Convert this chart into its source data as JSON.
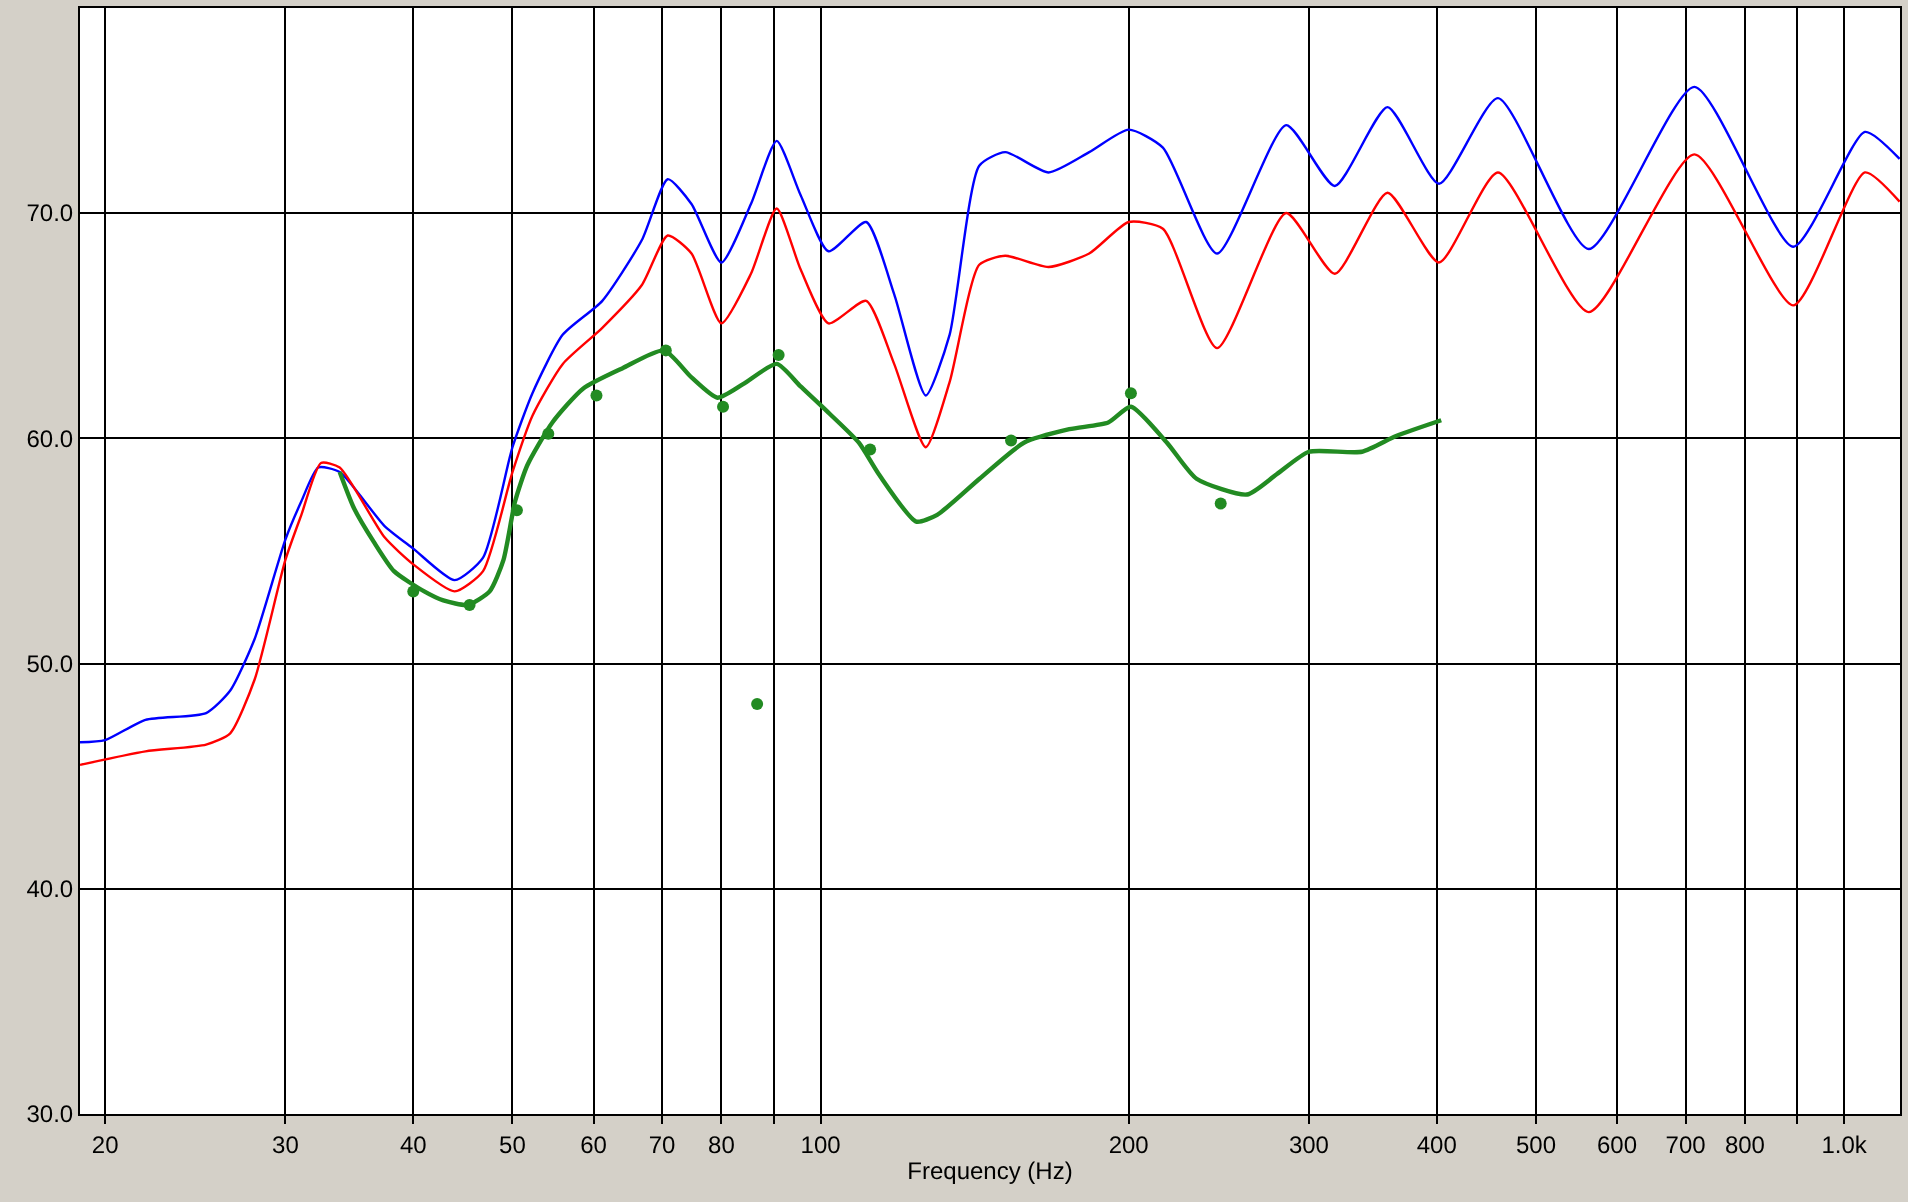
{
  "chart_data": {
    "type": "line",
    "xlabel": "Frequency (Hz)",
    "log": "x",
    "grid": true,
    "line_style": "solid",
    "xlim": [
      18.9,
      1134
    ],
    "ylim": [
      30,
      79.1
    ],
    "xticks": [
      20,
      30,
      40,
      50,
      60,
      70,
      80,
      {
        "value": 90,
        "label": null
      },
      100,
      200,
      300,
      400,
      500,
      600,
      700,
      800,
      {
        "value": 900,
        "label": null
      },
      {
        "value": 1000,
        "label": "1.0k"
      }
    ],
    "yticks": [
      {
        "value": 30,
        "label": "30.0"
      },
      {
        "value": 40,
        "label": "40.0"
      },
      {
        "value": 50,
        "label": "50.0"
      },
      {
        "value": 60,
        "label": "60.0"
      },
      {
        "value": 70,
        "label": "70.0"
      }
    ],
    "series": [
      {
        "color": "#0000ff",
        "x": [
          18.9,
          20,
          21.9,
          25.1,
          26.5,
          28.0,
          30,
          31.1,
          32.3,
          33.9,
          37.5,
          40,
          43.9,
          46.8,
          50,
          52.3,
          56.0,
          61.2,
          66.9,
          70.9,
          74.8,
          80,
          85.5,
          90.6,
          95.6,
          101.8,
          110.8,
          118,
          126.7,
          133.7,
          142.9,
          151.5,
          167,
          183,
          200,
          216,
          244,
          285,
          318,
          358,
          402,
          459,
          563,
          714,
          892,
          1048,
          1133
        ],
        "values": [
          46.5,
          46.6,
          47.5,
          47.8,
          48.8,
          51.1,
          55.5,
          57.2,
          58.7,
          58.5,
          56.1,
          55.1,
          53.7,
          54.7,
          59.6,
          62.0,
          64.6,
          66.1,
          68.8,
          71.5,
          70.4,
          67.8,
          70.4,
          73.2,
          70.8,
          68.3,
          69.6,
          66.4,
          61.9,
          64.6,
          72.1,
          72.7,
          71.8,
          72.7,
          73.7,
          72.9,
          68.2,
          73.9,
          71.2,
          74.7,
          71.3,
          75.1,
          68.4,
          75.6,
          68.5,
          73.6,
          72.4
        ]
      },
      {
        "color": "#ff0000",
        "x": [
          18.9,
          21.9,
          25.1,
          26.5,
          28.0,
          30,
          31.1,
          32.5,
          33.9,
          37.5,
          40,
          43.9,
          46.8,
          50,
          52.3,
          56.0,
          61.2,
          66.9,
          70.9,
          74.8,
          80,
          85.5,
          90.6,
          95.6,
          101.8,
          110.8,
          118,
          126.7,
          133.7,
          142.9,
          151.5,
          167,
          183,
          200,
          216,
          244,
          285,
          318,
          358,
          402,
          459,
          563,
          714,
          892,
          1048,
          1133
        ],
        "values": [
          45.5,
          46.1,
          46.4,
          46.9,
          49.3,
          54.6,
          56.6,
          58.9,
          58.7,
          55.6,
          54.4,
          53.2,
          54.1,
          58.5,
          61.0,
          63.3,
          64.9,
          66.8,
          69.0,
          68.2,
          65.1,
          67.3,
          70.2,
          67.5,
          65.1,
          66.1,
          63.3,
          59.6,
          62.5,
          67.7,
          68.1,
          67.6,
          68.2,
          69.6,
          69.3,
          64.0,
          70.0,
          67.3,
          70.9,
          67.8,
          71.8,
          65.6,
          72.6,
          65.9,
          71.8,
          70.5
        ]
      },
      {
        "color": "#228b22",
        "x": [
          33.9,
          35,
          36.6,
          38.3,
          41,
          42.8,
          45.2,
          47.5,
          49,
          50.3,
          51.7,
          54.7,
          58.6,
          64.0,
          70.3,
          74.8,
          79.3,
          84,
          90.6,
          95.6,
          102,
          109,
          114,
          124,
          130,
          143,
          158,
          175,
          191,
          201,
          218,
          233,
          261,
          279,
          300,
          338,
          365,
          404
        ],
        "values": [
          58.5,
          56.9,
          55.4,
          54.1,
          53.2,
          52.8,
          52.6,
          53.2,
          54.6,
          57.2,
          58.8,
          60.7,
          62.2,
          63.1,
          63.9,
          62.7,
          61.8,
          62.4,
          63.3,
          62.3,
          61.1,
          59.8,
          58.4,
          56.3,
          56.6,
          58.2,
          59.8,
          60.4,
          60.7,
          61.4,
          59.8,
          58.2,
          57.5,
          58.4,
          59.4,
          59.4,
          60.1,
          60.8
        ]
      },
      {
        "type": "scatter",
        "color": "#228b22",
        "x": [
          40,
          45.4,
          50.5,
          54.2,
          60.4,
          70.6,
          80.3,
          86.7,
          91,
          111.8,
          153.5,
          201,
          246
        ],
        "values": [
          53.2,
          52.6,
          56.8,
          60.2,
          61.9,
          63.9,
          61.4,
          48.2,
          63.7,
          59.5,
          59.9,
          62.0,
          57.1
        ]
      }
    ]
  }
}
